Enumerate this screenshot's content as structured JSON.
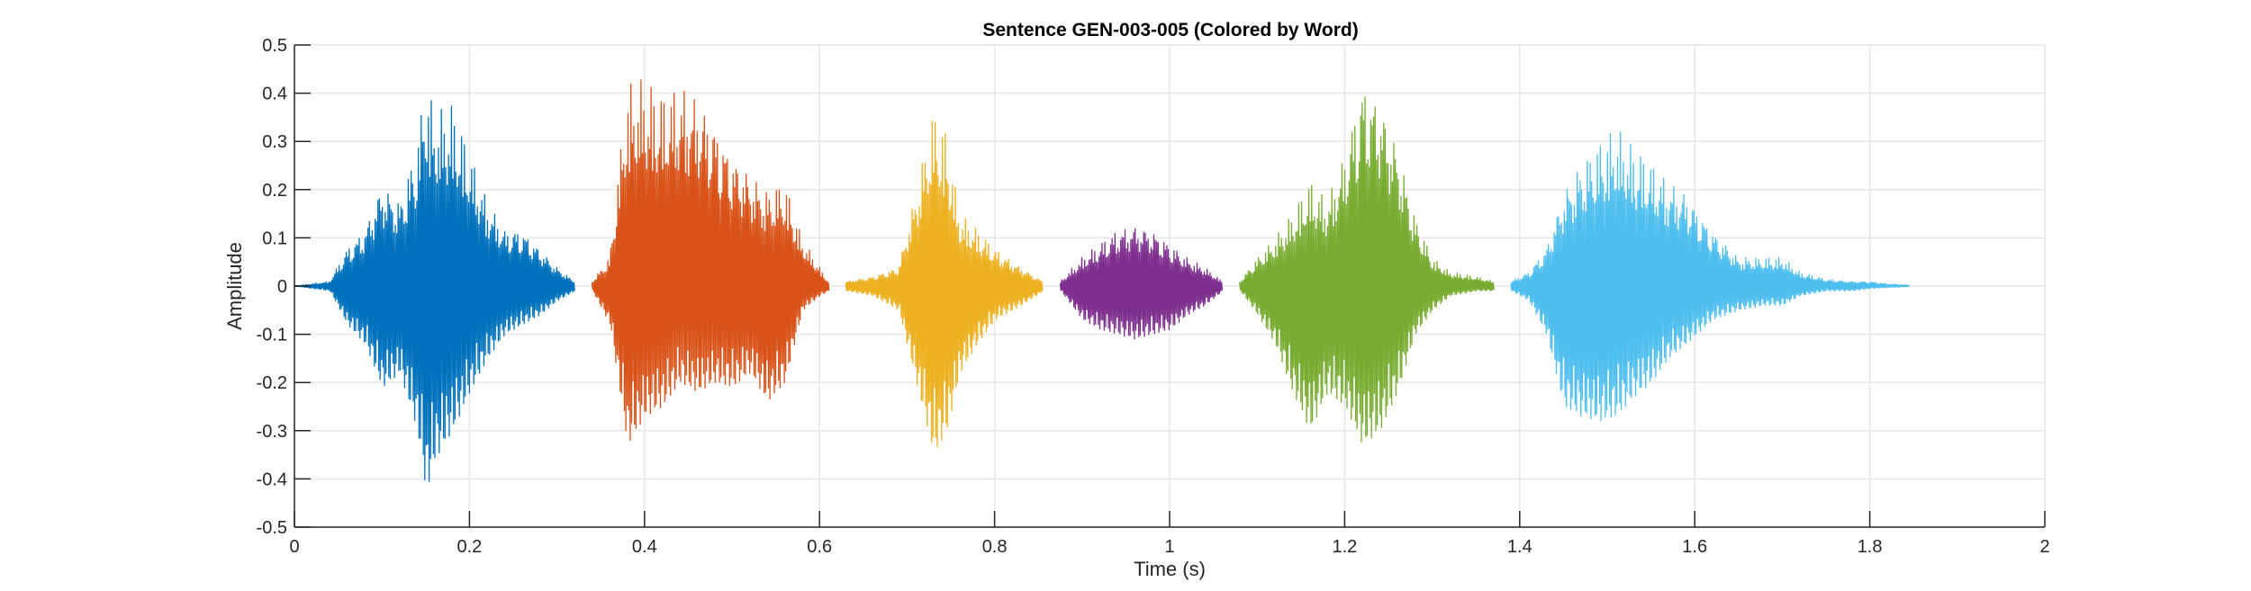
{
  "chart_data": {
    "type": "line",
    "title": "Sentence GEN-003-005 (Colored by Word)",
    "xlabel": "Time (s)",
    "ylabel": "Amplitude",
    "xlim": [
      0,
      2
    ],
    "ylim": [
      -0.5,
      0.5
    ],
    "xticks": [
      0,
      0.2,
      0.4,
      0.6,
      0.8,
      1,
      1.2,
      1.4,
      1.6,
      1.8,
      2
    ],
    "xtick_labels": [
      "0",
      "0.2",
      "0.4",
      "0.6",
      "0.8",
      "1",
      "1.2",
      "1.4",
      "1.6",
      "1.8",
      "2"
    ],
    "yticks": [
      -0.5,
      -0.4,
      -0.3,
      -0.2,
      -0.1,
      0,
      0.1,
      0.2,
      0.3,
      0.4,
      0.5
    ],
    "ytick_labels": [
      "-0.5",
      "-0.4",
      "-0.3",
      "-0.2",
      "-0.1",
      "0",
      "0.1",
      "0.2",
      "0.3",
      "0.4",
      "0.5"
    ],
    "grid": true,
    "series": [
      {
        "color": "#0072BD",
        "x": [
          0.0,
          0.04,
          0.06,
          0.08,
          0.1,
          0.12,
          0.14,
          0.15,
          0.16,
          0.18,
          0.2,
          0.22,
          0.24,
          0.26,
          0.28,
          0.3,
          0.32
        ],
        "upper": [
          0.0,
          0.01,
          0.08,
          0.12,
          0.22,
          0.18,
          0.3,
          0.44,
          0.36,
          0.38,
          0.28,
          0.18,
          0.12,
          0.12,
          0.08,
          0.04,
          0.01
        ],
        "lower": [
          0.0,
          -0.01,
          -0.08,
          -0.12,
          -0.21,
          -0.18,
          -0.3,
          -0.43,
          -0.36,
          -0.3,
          -0.22,
          -0.15,
          -0.1,
          -0.08,
          -0.06,
          -0.03,
          -0.01
        ]
      },
      {
        "color": "#D95319",
        "x": [
          0.34,
          0.36,
          0.38,
          0.4,
          0.42,
          0.44,
          0.46,
          0.48,
          0.5,
          0.52,
          0.54,
          0.56,
          0.58,
          0.6,
          0.61
        ],
        "upper": [
          0.01,
          0.06,
          0.42,
          0.43,
          0.4,
          0.42,
          0.4,
          0.35,
          0.28,
          0.24,
          0.2,
          0.22,
          0.1,
          0.04,
          0.01
        ],
        "lower": [
          -0.01,
          -0.08,
          -0.33,
          -0.27,
          -0.25,
          -0.2,
          -0.22,
          -0.2,
          -0.21,
          -0.18,
          -0.24,
          -0.2,
          -0.05,
          -0.02,
          -0.01
        ]
      },
      {
        "color": "#EDB120",
        "x": [
          0.63,
          0.66,
          0.69,
          0.71,
          0.73,
          0.745,
          0.76,
          0.78,
          0.8,
          0.83,
          0.855
        ],
        "upper": [
          0.01,
          0.02,
          0.04,
          0.2,
          0.37,
          0.32,
          0.15,
          0.12,
          0.08,
          0.04,
          0.01
        ],
        "lower": [
          -0.01,
          -0.02,
          -0.05,
          -0.2,
          -0.35,
          -0.3,
          -0.18,
          -0.12,
          -0.07,
          -0.04,
          -0.01
        ]
      },
      {
        "color": "#7E2F8E",
        "x": [
          0.875,
          0.9,
          0.92,
          0.94,
          0.96,
          0.98,
          1.0,
          1.02,
          1.04,
          1.06
        ],
        "upper": [
          0.01,
          0.06,
          0.09,
          0.12,
          0.13,
          0.12,
          0.09,
          0.06,
          0.04,
          0.01
        ],
        "lower": [
          -0.01,
          -0.07,
          -0.09,
          -0.1,
          -0.11,
          -0.1,
          -0.09,
          -0.06,
          -0.04,
          -0.01
        ]
      },
      {
        "color": "#77AC30",
        "x": [
          1.08,
          1.1,
          1.12,
          1.14,
          1.16,
          1.18,
          1.2,
          1.22,
          1.24,
          1.26,
          1.28,
          1.3,
          1.32,
          1.35,
          1.37
        ],
        "upper": [
          0.01,
          0.06,
          0.1,
          0.15,
          0.22,
          0.18,
          0.28,
          0.44,
          0.4,
          0.3,
          0.15,
          0.06,
          0.03,
          0.02,
          0.01
        ],
        "lower": [
          -0.01,
          -0.06,
          -0.12,
          -0.22,
          -0.3,
          -0.22,
          -0.25,
          -0.33,
          -0.3,
          -0.22,
          -0.1,
          -0.05,
          -0.02,
          -0.01,
          -0.01
        ]
      },
      {
        "color": "#4DBEEE",
        "x": [
          1.39,
          1.41,
          1.43,
          1.45,
          1.47,
          1.49,
          1.51,
          1.53,
          1.55,
          1.57,
          1.59,
          1.62,
          1.65,
          1.68,
          1.7,
          1.72,
          1.75,
          1.78,
          1.8,
          1.82,
          1.845
        ],
        "upper": [
          0.01,
          0.03,
          0.08,
          0.2,
          0.26,
          0.3,
          0.33,
          0.29,
          0.26,
          0.22,
          0.2,
          0.12,
          0.06,
          0.06,
          0.06,
          0.03,
          0.015,
          0.01,
          0.01,
          0.005,
          0.002
        ],
        "lower": [
          -0.01,
          -0.03,
          -0.1,
          -0.25,
          -0.27,
          -0.28,
          -0.27,
          -0.23,
          -0.2,
          -0.15,
          -0.12,
          -0.07,
          -0.05,
          -0.04,
          -0.04,
          -0.02,
          -0.01,
          -0.01,
          -0.005,
          -0.003,
          -0.001
        ]
      }
    ]
  }
}
